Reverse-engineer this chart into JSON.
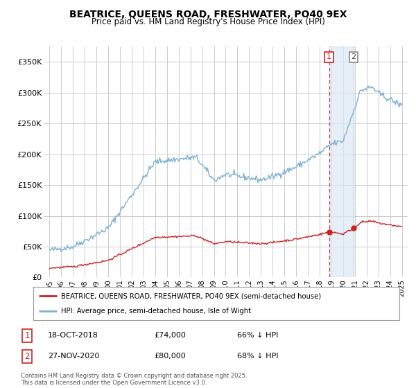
{
  "title": "BEATRICE, QUEENS ROAD, FRESHWATER, PO40 9EX",
  "subtitle": "Price paid vs. HM Land Registry's House Price Index (HPI)",
  "background_color": "#ffffff",
  "plot_bg_color": "#ffffff",
  "grid_color": "#cccccc",
  "hpi_color": "#7ab0d4",
  "price_color": "#cc2222",
  "sale1_date": 2018.8,
  "sale1_price": 74000,
  "sale2_date": 2020.9,
  "sale2_price": 80000,
  "ylim_max": 375000,
  "xlim_min": 1994.5,
  "xlim_max": 2025.5,
  "footnote": "Contains HM Land Registry data © Crown copyright and database right 2025.\nThis data is licensed under the Open Government Licence v3.0.",
  "legend_house": "BEATRICE, QUEENS ROAD, FRESHWATER, PO40 9EX (semi-detached house)",
  "legend_hpi": "HPI: Average price, semi-detached house, Isle of Wight",
  "table": [
    {
      "num": "1",
      "date": "18-OCT-2018",
      "price": "£74,000",
      "pct": "66% ↓ HPI"
    },
    {
      "num": "2",
      "date": "27-NOV-2020",
      "price": "£80,000",
      "pct": "68% ↓ HPI"
    }
  ],
  "yticks": [
    0,
    50000,
    100000,
    150000,
    200000,
    250000,
    300000,
    350000
  ],
  "ylabels": [
    "£0",
    "£50K",
    "£100K",
    "£150K",
    "£200K",
    "£250K",
    "£300K",
    "£350K"
  ]
}
